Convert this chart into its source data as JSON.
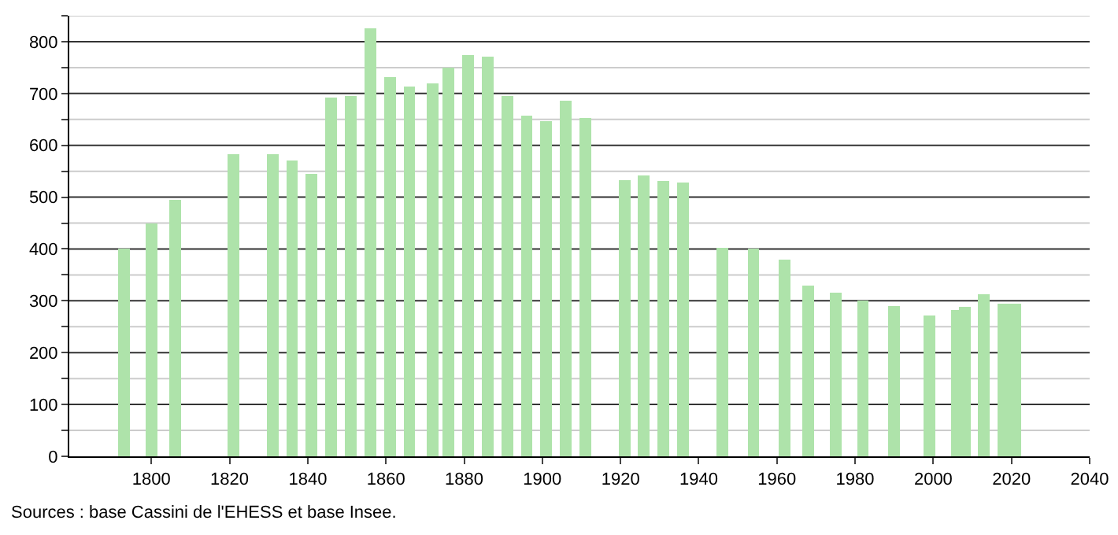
{
  "chart_data": {
    "type": "bar",
    "x": [
      1793,
      1800,
      1806,
      1821,
      1831,
      1836,
      1841,
      1846,
      1851,
      1856,
      1861,
      1866,
      1872,
      1876,
      1881,
      1886,
      1891,
      1896,
      1901,
      1906,
      1911,
      1921,
      1926,
      1931,
      1936,
      1946,
      1954,
      1962,
      1968,
      1975,
      1982,
      1990,
      1999,
      2006,
      2008,
      2013,
      2018,
      2021
    ],
    "values": [
      400,
      450,
      495,
      583,
      583,
      571,
      545,
      692,
      695,
      825,
      732,
      713,
      720,
      750,
      774,
      771,
      695,
      657,
      646,
      686,
      653,
      533,
      542,
      532,
      528,
      402,
      400,
      379,
      329,
      316,
      301,
      290,
      272,
      283,
      289,
      312,
      294,
      294
    ],
    "color": "#aee3aa",
    "xlim": [
      1779,
      2040
    ],
    "xticks": [
      1800,
      1820,
      1840,
      1860,
      1880,
      1900,
      1920,
      1940,
      1960,
      1980,
      2000,
      2020,
      2040
    ],
    "ylim": [
      0,
      850
    ],
    "yticks": [
      0,
      {
        "value": 50,
        "label": null
      },
      100,
      {
        "value": 150,
        "label": null
      },
      200,
      {
        "value": 250,
        "label": null
      },
      300,
      {
        "value": 350,
        "label": null
      },
      400,
      {
        "value": 450,
        "label": null
      },
      500,
      {
        "value": 550,
        "label": null
      },
      600,
      {
        "value": 650,
        "label": null
      },
      700,
      {
        "value": 750,
        "label": null
      },
      800,
      {
        "value": 850,
        "label": null
      }
    ],
    "grid": true,
    "annotations": [
      "Sources : base Cassini de l'EHESS et base Insee."
    ]
  }
}
